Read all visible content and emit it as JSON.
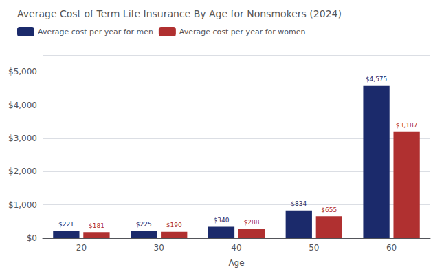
{
  "chart_data": {
    "type": "bar",
    "title": "Average Cost of Term Life Insurance By Age for Nonsmokers (2024)",
    "xlabel": "Age",
    "categories": [
      "20",
      "30",
      "40",
      "50",
      "60"
    ],
    "series": [
      {
        "name": "Average cost per year for men",
        "color": "#1b2a6b",
        "values": [
          221,
          225,
          340,
          834,
          4575
        ],
        "value_labels": [
          "$221",
          "$225",
          "$340",
          "$834",
          "$4,575"
        ]
      },
      {
        "name": "Average cost per year for women",
        "color": "#b03030",
        "values": [
          181,
          190,
          288,
          655,
          3187
        ],
        "value_labels": [
          "$181",
          "$190",
          "$288",
          "$655",
          "$3,187"
        ]
      }
    ],
    "ylim": [
      0,
      5500
    ],
    "yticks": [
      {
        "value": 0,
        "label": "$0"
      },
      {
        "value": 1000,
        "label": "$1,000"
      },
      {
        "value": 2000,
        "label": "$2,000"
      },
      {
        "value": 3000,
        "label": "$3,000"
      },
      {
        "value": 4000,
        "label": "$4,000"
      },
      {
        "value": 5000,
        "label": "$5,000"
      }
    ],
    "grid": true,
    "legend": "upper left",
    "data_labels": true
  }
}
